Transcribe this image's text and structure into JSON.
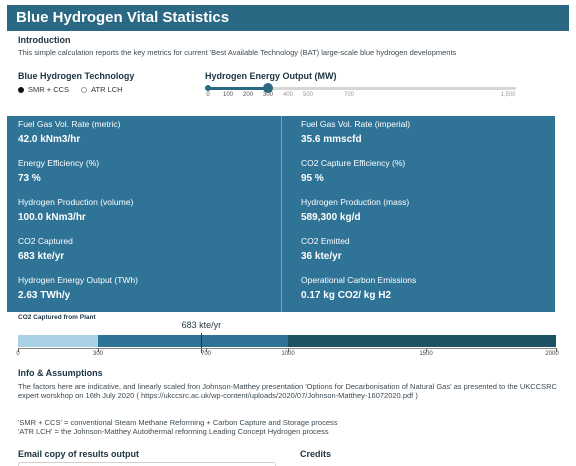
{
  "title": "Blue Hydrogen Vital Statistics",
  "intro": {
    "heading": "Introduction",
    "text": "This simple calculation reports the key metrics for current 'Best Available Technology (BAT) large-scale blue hydrogen developments"
  },
  "technology": {
    "label": "Blue Hydrogen Technology",
    "options": [
      {
        "label": "SMR + CCS",
        "selected": true
      },
      {
        "label": "ATR LCH",
        "selected": false
      }
    ]
  },
  "energy_slider": {
    "label": "Hydrogen Energy Output (MW)",
    "min": 0,
    "max": 1500,
    "value": 300,
    "ticks": [
      "0",
      "100",
      "200",
      "300",
      "400",
      "500",
      "700",
      "1,500"
    ]
  },
  "metrics": {
    "fuel_gas_metric": {
      "label": "Fuel Gas Vol. Rate (metric)",
      "value": "42.0 kNm3/hr"
    },
    "fuel_gas_imperial": {
      "label": "Fuel Gas Vol. Rate (imperial)",
      "value": "35.6 mmscfd"
    },
    "energy_efficiency": {
      "label": "Energy Efficiency (%)",
      "value": "73 %"
    },
    "co2_capture_efficiency": {
      "label": "CO2 Capture Efficiency (%)",
      "value": "95 %"
    },
    "h2_production_volume": {
      "label": "Hydrogen Production (volume)",
      "value": "100.0 kNm3/hr"
    },
    "h2_production_mass": {
      "label": "Hydrogen Production (mass)",
      "value": "589,300 kg/d"
    },
    "co2_captured": {
      "label": "CO2 Captured",
      "value": "683 kte/yr"
    },
    "co2_emitted": {
      "label": "CO2 Emitted",
      "value": "36 kte/yr"
    },
    "h2_energy_output": {
      "label": "Hydrogen Energy Output (TWh)",
      "value": "2.63 TWh/y"
    },
    "operational_emissions": {
      "label": "Operational Carbon Emissions",
      "value": "0.17 kg CO2/ kg H2"
    }
  },
  "co2_bar": {
    "title": "CO2 Captured from Plant",
    "value_label": "683 kte/yr",
    "value": 683,
    "min": 0,
    "max": 2000,
    "bands": [
      {
        "from": 0,
        "to": 300,
        "color": "#a9d3e4"
      },
      {
        "from": 300,
        "to": 1000,
        "color": "#2f7396"
      },
      {
        "from": 1000,
        "to": 2000,
        "color": "#1d5264"
      }
    ],
    "ticks": [
      "0",
      "300",
      "700",
      "1000",
      "1500",
      "2000"
    ]
  },
  "info": {
    "heading": "Info & Assumptions",
    "para1": "The factors here are indicative, and linearly scaled fron Johnson-Matthey presentation 'Options for Decarbonisation of Natural Gas' as presented to the UKCCSRC expert worskhop on 16th July 2020 ( https://ukccsrc.ac.uk/wp-content/uploads/2020/07/Johnson-Matthey-16072020.pdf )",
    "para2": "'SMR + CCS' = conventional Steam Methane Reforming + Carbon Capture and Storage process",
    "para3": "'ATR LCH' = the Johnson-Matthey Autothermal reforming Leading Concept Hydrogen process"
  },
  "email": {
    "heading": "Email copy of results output"
  },
  "credits": {
    "heading": "Credits"
  },
  "colors": {
    "header": "#2b6884",
    "metrics_panel": "#2f7396",
    "text_dark": "#1b3442"
  }
}
